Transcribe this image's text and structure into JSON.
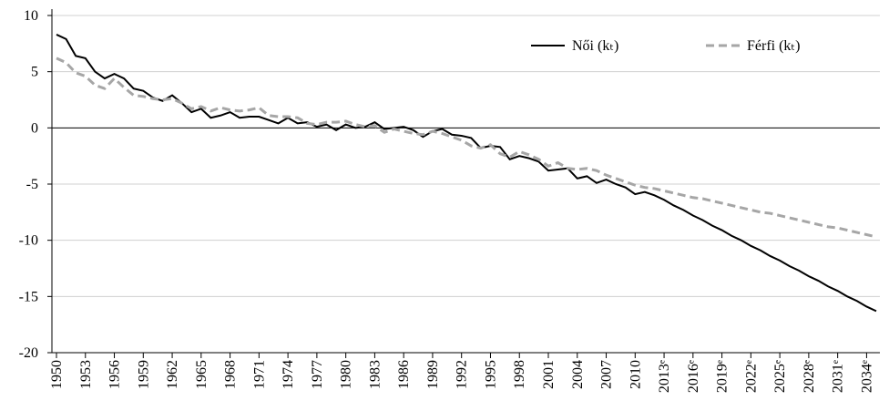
{
  "chart_data": {
    "type": "line",
    "x": [
      1950,
      1951,
      1952,
      1953,
      1954,
      1955,
      1956,
      1957,
      1958,
      1959,
      1960,
      1961,
      1962,
      1963,
      1964,
      1965,
      1966,
      1967,
      1968,
      1969,
      1970,
      1971,
      1972,
      1973,
      1974,
      1975,
      1976,
      1977,
      1978,
      1979,
      1980,
      1981,
      1982,
      1983,
      1984,
      1985,
      1986,
      1987,
      1988,
      1989,
      1990,
      1991,
      1992,
      1993,
      1994,
      1995,
      1996,
      1997,
      1998,
      1999,
      2000,
      2001,
      2002,
      2003,
      2004,
      2005,
      2006,
      2007,
      2008,
      2009,
      2010,
      2011,
      2012,
      2013,
      2014,
      2015,
      2016,
      2017,
      2018,
      2019,
      2020,
      2021,
      2022,
      2023,
      2024,
      2025,
      2026,
      2027,
      2028,
      2029,
      2030,
      2031,
      2032,
      2033,
      2034,
      2035
    ],
    "series": [
      {
        "name": "Női (kₜ)",
        "color": "#000000",
        "dash": false,
        "values": [
          8.3,
          7.9,
          6.4,
          6.2,
          5.0,
          4.4,
          4.8,
          4.4,
          3.5,
          3.3,
          2.7,
          2.4,
          2.9,
          2.2,
          1.4,
          1.7,
          0.9,
          1.1,
          1.4,
          0.9,
          1.0,
          1.0,
          0.7,
          0.4,
          0.9,
          0.4,
          0.5,
          0.1,
          0.3,
          -0.2,
          0.3,
          0.0,
          0.1,
          0.5,
          -0.1,
          0.0,
          0.1,
          -0.2,
          -0.8,
          -0.3,
          -0.1,
          -0.6,
          -0.7,
          -0.9,
          -1.8,
          -1.6,
          -1.7,
          -2.8,
          -2.5,
          -2.7,
          -3.0,
          -3.8,
          -3.7,
          -3.6,
          -4.5,
          -4.3,
          -4.9,
          -4.6,
          -5.0,
          -5.3,
          -5.9,
          -5.7,
          -6.0,
          -6.4,
          -6.9,
          -7.3,
          -7.8,
          -8.2,
          -8.7,
          -9.1,
          -9.6,
          -10.0,
          -10.5,
          -10.9,
          -11.4,
          -11.8,
          -12.3,
          -12.7,
          -13.2,
          -13.6,
          -14.1,
          -14.5,
          -15.0,
          -15.4,
          -15.9,
          -16.3
        ]
      },
      {
        "name": "Férfi (kₜ)",
        "color": "#a6a6a6",
        "dash": true,
        "values": [
          6.2,
          5.8,
          4.9,
          4.6,
          3.8,
          3.5,
          4.4,
          3.6,
          2.9,
          2.8,
          2.6,
          2.5,
          2.6,
          2.2,
          1.7,
          1.9,
          1.5,
          1.8,
          1.6,
          1.5,
          1.6,
          1.8,
          1.1,
          1.0,
          1.0,
          0.9,
          0.4,
          0.3,
          0.5,
          0.5,
          0.6,
          0.3,
          0.1,
          0.2,
          -0.4,
          -0.1,
          -0.3,
          -0.5,
          -0.6,
          -0.3,
          -0.5,
          -0.8,
          -1.1,
          -1.6,
          -1.8,
          -1.5,
          -2.3,
          -2.6,
          -2.1,
          -2.4,
          -2.8,
          -3.4,
          -3.1,
          -3.6,
          -3.7,
          -3.6,
          -3.8,
          -4.2,
          -4.5,
          -4.8,
          -5.1,
          -5.3,
          -5.4,
          -5.6,
          -5.8,
          -6.0,
          -6.2,
          -6.3,
          -6.5,
          -6.7,
          -6.9,
          -7.1,
          -7.3,
          -7.5,
          -7.6,
          -7.8,
          -8.0,
          -8.2,
          -8.4,
          -8.6,
          -8.8,
          -8.9,
          -9.1,
          -9.3,
          -9.5,
          -9.7
        ]
      }
    ],
    "xlim": [
      1950,
      2035
    ],
    "xticks": [
      1950,
      1953,
      1956,
      1959,
      1962,
      1965,
      1968,
      1971,
      1974,
      1977,
      1980,
      1983,
      1986,
      1989,
      1992,
      1995,
      1998,
      2001,
      2004,
      2007,
      2010,
      {
        "value": 2013,
        "label": "2013ᵉ"
      },
      {
        "value": 2016,
        "label": "2016ᵉ"
      },
      {
        "value": 2019,
        "label": "2019ᵉ"
      },
      {
        "value": 2022,
        "label": "2022ᵉ"
      },
      {
        "value": 2025,
        "label": "2025ᵉ"
      },
      {
        "value": 2028,
        "label": "2028ᵉ"
      },
      {
        "value": 2031,
        "label": "2031ᵉ"
      },
      {
        "value": 2034,
        "label": "2034ᵉ"
      }
    ],
    "ylim": [
      -20,
      10
    ],
    "yticks": [
      -20,
      -15,
      -10,
      -5,
      0,
      5,
      10
    ],
    "grid": true
  }
}
